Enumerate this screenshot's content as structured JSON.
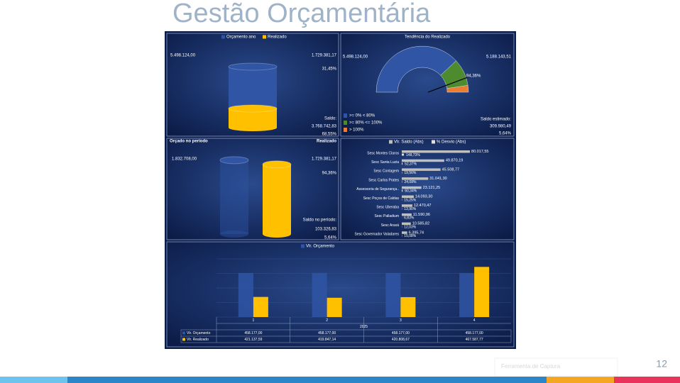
{
  "slide": {
    "title": "Gestão Orçamentária",
    "page_number": "12",
    "footer_note": "Ferramenta de Captura"
  },
  "chart_data": [
    {
      "type": "cylinder",
      "ylim": [
        0,
        5500000
      ],
      "series": [
        {
          "name": "Orçamento ano",
          "color": "#2f55a4",
          "values": [
            5498124.0
          ],
          "value_labels": [
            "5.498.124,00"
          ]
        },
        {
          "name": "Realizado",
          "color": "#ffc000",
          "values": [
            1729381.17
          ],
          "value_labels": [
            "1.729.381,17"
          ]
        }
      ],
      "annotations": [
        "31,45%",
        "Saldo:",
        "3.768.742,83",
        "68,55%"
      ]
    },
    {
      "type": "gauge",
      "title": "Tendência do Realizado",
      "ylim": [
        0,
        105
      ],
      "values": [
        94.36
      ],
      "value_labels": [
        "94,36%"
      ],
      "bands": [
        {
          "name": ">= 0% < 80%",
          "color": "#2f55a4",
          "from": 0,
          "to": 80
        },
        {
          "name": ">= 80% <= 100%",
          "color": "#4e8a2e",
          "from": 80,
          "to": 100
        },
        {
          "name": "> 100%",
          "color": "#ed7d31",
          "from": 100,
          "to": 105
        }
      ],
      "annotations": [
        "5.498.124,00",
        "5.188.143,51",
        "Saldo estimado:",
        "309.980,49",
        "5,64%"
      ]
    },
    {
      "type": "cylinder_pair",
      "ylim": [
        0,
        1900000
      ],
      "series": [
        {
          "name": "Orçado no período",
          "color": "#2f55a4",
          "values": [
            1832708.0
          ],
          "value_labels": [
            "1.832.708,00"
          ]
        },
        {
          "name": "Realizado",
          "color": "#ffc000",
          "values": [
            1729381.17
          ],
          "value_labels": [
            "1.729.381,17"
          ]
        }
      ],
      "annotations": [
        "94,36%",
        "Saldo no período:",
        "103.326,83",
        "5,64%"
      ]
    },
    {
      "type": "hbar",
      "xlim": [
        0,
        85000
      ],
      "x2lim": [
        0,
        5000
      ],
      "categories": [
        "Sesc Montes Claros",
        "Sesc Santa Luzia",
        "Sesc Contagem",
        "Sesc Carlos Prates",
        "Assessoria de Segurança..",
        "Sesc Poços de Caldas",
        "Sesc Uberaba",
        "Sesc Palladium",
        "Sesc Araxá",
        "Sesc Governador Valadares"
      ],
      "series": [
        {
          "name": "Vlr. Saldo (Abs)",
          "color": "#bfbfbf",
          "values": [
            80017.55,
            49870.19,
            45508.77,
            31041.3,
            23121.25,
            14093.3,
            12470.47,
            11590.96,
            10585.82,
            6395.74
          ],
          "value_labels": [
            "80.017,55",
            "49.870,19",
            "45.508,77",
            "31.041,30",
            "23.121,25",
            "14.093,30",
            "12.470,47",
            "11.590,96",
            "10.585,82",
            "6.395,74"
          ]
        },
        {
          "name": "% Desvio (Abs)",
          "color": "#e0e0e0",
          "axis": "x2",
          "values": [
            148.73,
            52.37,
            19.56,
            24.08,
            60.34,
            15.25,
            13.9,
            6.83,
            12.03,
            15.08
          ],
          "value_labels": [
            "148,73%",
            "52,37%",
            "19,56%",
            "24,08%",
            "60,34%",
            "15,25%",
            "13,90%",
            "6,83%",
            "12,03%",
            "15,08%"
          ]
        }
      ]
    },
    {
      "type": "bar",
      "ylim": [
        390000,
        480000
      ],
      "categories": [
        "1",
        "2",
        "3",
        "4"
      ],
      "group_label": "2025",
      "series": [
        {
          "name": "Vlr. Orçamento",
          "color": "#2f55a4",
          "values": [
            458177.0,
            458177.0,
            458177.0,
            458177.0
          ],
          "value_labels": [
            "458.177,00",
            "458.177,00",
            "458.177,00",
            "458.177,00"
          ]
        },
        {
          "name": "Vlr. Realizado",
          "color": "#ffc000",
          "values": [
            421137.59,
            419847.14,
            420808.67,
            467587.77
          ],
          "value_labels": [
            "421.137,59",
            "419.847,14",
            "420.808,67",
            "467.587,77"
          ]
        }
      ]
    }
  ]
}
